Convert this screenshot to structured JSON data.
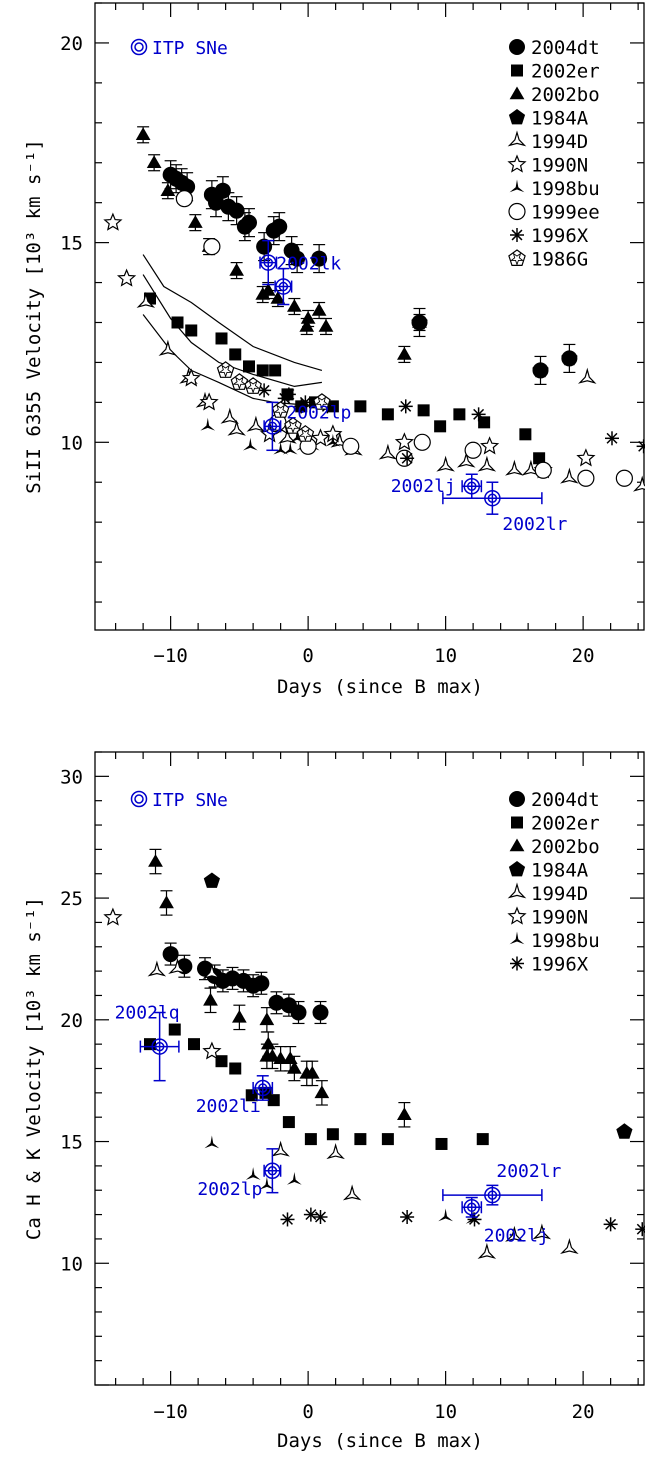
{
  "colors": {
    "ink": "#000000",
    "itp": "#0000cc"
  },
  "chart_data": [
    {
      "type": "scatter",
      "xlabel": "Days (since B max)",
      "ylabel": "SiII 6355 Velocity [10³ km s⁻¹]",
      "xlim": [
        -15.5,
        24.5
      ],
      "ylim": [
        5.3,
        21.0
      ],
      "xticks": [
        -10,
        0,
        10,
        20
      ],
      "yticks": [
        10,
        15,
        20
      ],
      "xtick_labels": [
        "−10",
        "0",
        "10",
        "20"
      ],
      "ytick_labels": [
        "10",
        "15",
        "20"
      ],
      "legend_position": "top-right",
      "itp_label": "ITP SNe",
      "series": [
        {
          "name": "2004dt",
          "marker": "circle-filled",
          "points": [
            [
              -10.0,
              16.7
            ],
            [
              -9.6,
              16.6
            ],
            [
              -9.2,
              16.5
            ],
            [
              -8.8,
              16.4
            ],
            [
              -7.0,
              16.2
            ],
            [
              -6.7,
              16.0
            ],
            [
              -6.2,
              16.3
            ],
            [
              -5.8,
              15.9
            ],
            [
              -5.2,
              15.8
            ],
            [
              -4.6,
              15.4
            ],
            [
              -4.3,
              15.5
            ],
            [
              -3.2,
              14.9
            ],
            [
              -2.5,
              15.3
            ],
            [
              -2.1,
              15.4
            ],
            [
              -1.2,
              14.8
            ],
            [
              -0.8,
              14.6
            ],
            [
              0.8,
              14.6
            ],
            [
              8.1,
              13.0
            ],
            [
              16.9,
              11.8
            ],
            [
              19.0,
              12.1
            ]
          ],
          "err": 0.35
        },
        {
          "name": "2002er",
          "marker": "square-filled",
          "points": [
            [
              -11.5,
              13.6
            ],
            [
              -9.5,
              13.0
            ],
            [
              -8.5,
              12.8
            ],
            [
              -6.3,
              12.6
            ],
            [
              -5.3,
              12.2
            ],
            [
              -4.3,
              11.9
            ],
            [
              -3.3,
              11.8
            ],
            [
              -2.4,
              11.8
            ],
            [
              -1.5,
              11.2
            ],
            [
              -0.5,
              10.9
            ],
            [
              0.5,
              11.0
            ],
            [
              1.8,
              10.9
            ],
            [
              3.8,
              10.9
            ],
            [
              5.8,
              10.7
            ],
            [
              8.4,
              10.8
            ],
            [
              9.6,
              10.4
            ],
            [
              11.0,
              10.7
            ],
            [
              12.8,
              10.5
            ],
            [
              15.8,
              10.2
            ],
            [
              16.8,
              9.6
            ]
          ]
        },
        {
          "name": "2002bo",
          "marker": "triangle-filled",
          "points": [
            [
              -12.0,
              17.7
            ],
            [
              -11.2,
              17.0
            ],
            [
              -10.2,
              16.3
            ],
            [
              -8.2,
              15.5
            ],
            [
              -7.2,
              14.9
            ],
            [
              -5.2,
              14.3
            ],
            [
              -3.3,
              13.7
            ],
            [
              -2.9,
              13.8
            ],
            [
              -2.2,
              13.6
            ],
            [
              -1.0,
              13.4
            ],
            [
              -0.1,
              12.9
            ],
            [
              0.0,
              13.1
            ],
            [
              0.8,
              13.3
            ],
            [
              1.3,
              12.9
            ],
            [
              7.0,
              12.2
            ],
            [
              8.1,
              13.0
            ]
          ],
          "err": 0.2
        },
        {
          "name": "1984A",
          "marker": "pentagon-filled",
          "points": [
            [
              8.1,
              13.0
            ],
            [
              16.9,
              11.8
            ],
            [
              19.0,
              12.1
            ]
          ]
        },
        {
          "name": "1994D",
          "marker": "triangle-open",
          "points": [
            [
              -11.8,
              13.5
            ],
            [
              -10.2,
              12.3
            ],
            [
              -8.7,
              11.6
            ],
            [
              -7.5,
              11.0
            ],
            [
              -5.7,
              10.6
            ],
            [
              -5.2,
              10.3
            ],
            [
              -3.8,
              10.4
            ],
            [
              -1.5,
              10.1
            ],
            [
              2.3,
              10.0
            ],
            [
              3.3,
              9.8
            ],
            [
              5.8,
              9.7
            ],
            [
              10.0,
              9.4
            ],
            [
              11.5,
              9.5
            ],
            [
              13.0,
              9.4
            ],
            [
              15.0,
              9.3
            ],
            [
              16.2,
              9.3
            ],
            [
              19.0,
              9.1
            ],
            [
              20.3,
              11.6
            ],
            [
              24.3,
              8.9
            ]
          ]
        },
        {
          "name": "1990N",
          "marker": "star5-open",
          "points": [
            [
              -14.2,
              15.5
            ],
            [
              -13.2,
              14.1
            ],
            [
              -8.5,
              11.6
            ],
            [
              -7.2,
              11.0
            ],
            [
              -2.8,
              10.2
            ],
            [
              -1.9,
              10.4
            ],
            [
              0.9,
              10.1
            ],
            [
              1.8,
              10.2
            ],
            [
              7.0,
              10.0
            ],
            [
              13.2,
              9.9
            ],
            [
              17.1,
              9.3
            ],
            [
              20.2,
              9.6
            ]
          ]
        },
        {
          "name": "1998bu",
          "marker": "star3-filled",
          "points": [
            [
              -7.3,
              10.4
            ],
            [
              -4.2,
              9.9
            ],
            [
              -2.0,
              9.8
            ],
            [
              -1.3,
              9.8
            ],
            [
              -0.8,
              10.1
            ],
            [
              -0.3,
              9.9
            ],
            [
              0.3,
              9.9
            ],
            [
              1.8,
              10.0
            ]
          ]
        },
        {
          "name": "1999ee",
          "marker": "circle-open",
          "points": [
            [
              -9.0,
              16.1
            ],
            [
              -7.0,
              14.9
            ],
            [
              -2.2,
              10.5
            ],
            [
              0.0,
              9.9
            ],
            [
              3.1,
              9.9
            ],
            [
              7.0,
              9.6
            ],
            [
              8.3,
              10.0
            ],
            [
              12.0,
              9.8
            ],
            [
              17.1,
              9.3
            ],
            [
              20.2,
              9.1
            ],
            [
              23.0,
              9.1
            ]
          ]
        },
        {
          "name": "1996X",
          "marker": "asterisk",
          "points": [
            [
              -3.2,
              11.3
            ],
            [
              -1.7,
              11.1
            ],
            [
              -1.4,
              11.2
            ],
            [
              -0.5,
              10.9
            ],
            [
              -0.2,
              11.0
            ],
            [
              1.4,
              10.9
            ],
            [
              7.1,
              10.9
            ],
            [
              7.2,
              9.6
            ],
            [
              12.4,
              10.7
            ],
            [
              22.1,
              10.1
            ],
            [
              24.4,
              9.9
            ]
          ]
        },
        {
          "name": "1986G",
          "marker": "star-pentagon",
          "points": [
            [
              -6.0,
              11.8
            ],
            [
              -5.0,
              11.5
            ],
            [
              -4.0,
              11.4
            ],
            [
              -2.0,
              10.8
            ],
            [
              -1.1,
              10.4
            ],
            [
              -0.2,
              10.2
            ],
            [
              1.0,
              11.0
            ]
          ]
        }
      ],
      "model_curves": [
        [
          [
            -12.0,
            14.7
          ],
          [
            -10.5,
            13.9
          ],
          [
            -8.5,
            13.5
          ],
          [
            -6.5,
            13.0
          ],
          [
            -4.0,
            12.4
          ],
          [
            -1.0,
            12.0
          ],
          [
            1.0,
            11.8
          ]
        ],
        [
          [
            -12.0,
            14.2
          ],
          [
            -10.0,
            13.1
          ],
          [
            -8.5,
            12.5
          ],
          [
            -6.5,
            12.0
          ],
          [
            -4.0,
            11.7
          ],
          [
            -1.0,
            11.4
          ],
          [
            1.0,
            11.5
          ]
        ],
        [
          [
            -12.0,
            13.2
          ],
          [
            -10.0,
            12.3
          ],
          [
            -8.5,
            11.8
          ],
          [
            -6.5,
            11.5
          ],
          [
            -4.0,
            11.1
          ],
          [
            -2.5,
            11.0
          ],
          [
            1.0,
            10.9
          ]
        ]
      ],
      "itp_points": [
        {
          "label": "2002lk",
          "x": -2.9,
          "y": 14.5,
          "xerr": 0.6,
          "yerr": 0.55
        },
        {
          "label": "",
          "x": -1.8,
          "y": 13.9,
          "xerr": 0.6,
          "yerr": 0.45
        },
        {
          "label": "2002lp",
          "x": -2.6,
          "y": 10.4,
          "xerr": 0.6,
          "yerr": 0.6
        },
        {
          "label": "2002lj",
          "x": 11.9,
          "y": 8.9,
          "xerr": 0.7,
          "yerr": 0.3
        },
        {
          "label": "2002lr",
          "x": 13.4,
          "y": 8.6,
          "xerr": 3.6,
          "yerr": 0.4
        }
      ]
    },
    {
      "type": "scatter",
      "xlabel": "Days (since B max)",
      "ylabel": "Ca H & K Velocity [10³ km s⁻¹]",
      "xlim": [
        -15.5,
        24.5
      ],
      "ylim": [
        5.0,
        31.0
      ],
      "xticks": [
        -10,
        0,
        10,
        20
      ],
      "yticks": [
        10,
        15,
        20,
        25,
        30
      ],
      "xtick_labels": [
        "−10",
        "0",
        "10",
        "20"
      ],
      "ytick_labels": [
        "10",
        "15",
        "20",
        "25",
        "30"
      ],
      "legend_position": "top-right",
      "itp_label": "ITP SNe",
      "series": [
        {
          "name": "2004dt",
          "marker": "circle-filled",
          "points": [
            [
              -10.0,
              22.7
            ],
            [
              -9.0,
              22.2
            ],
            [
              -7.5,
              22.1
            ],
            [
              -6.8,
              21.8
            ],
            [
              -6.2,
              21.6
            ],
            [
              -5.5,
              21.7
            ],
            [
              -4.7,
              21.6
            ],
            [
              -4.0,
              21.4
            ],
            [
              -3.4,
              21.5
            ],
            [
              -2.3,
              20.7
            ],
            [
              -1.4,
              20.6
            ],
            [
              -0.7,
              20.3
            ],
            [
              0.9,
              20.3
            ]
          ],
          "err": 0.45
        },
        {
          "name": "2002er",
          "marker": "square-filled",
          "points": [
            [
              -11.5,
              19.0
            ],
            [
              -9.7,
              19.6
            ],
            [
              -8.3,
              19.0
            ],
            [
              -6.3,
              18.3
            ],
            [
              -5.3,
              18.0
            ],
            [
              -4.1,
              16.9
            ],
            [
              -3.1,
              17.0
            ],
            [
              -2.5,
              16.7
            ],
            [
              -1.4,
              15.8
            ],
            [
              0.2,
              15.1
            ],
            [
              1.8,
              15.3
            ],
            [
              3.8,
              15.1
            ],
            [
              5.8,
              15.1
            ],
            [
              9.7,
              14.9
            ],
            [
              12.7,
              15.1
            ]
          ]
        },
        {
          "name": "2002bo",
          "marker": "triangle-filled",
          "points": [
            [
              -11.1,
              26.5
            ],
            [
              -10.3,
              24.8
            ],
            [
              -7.1,
              20.8
            ],
            [
              -5.0,
              20.1
            ],
            [
              -3.0,
              18.5
            ],
            [
              -2.6,
              18.5
            ],
            [
              -2.0,
              18.4
            ],
            [
              -1.3,
              18.4
            ],
            [
              -1.0,
              18.0
            ],
            [
              -0.1,
              17.8
            ],
            [
              0.3,
              17.8
            ],
            [
              1.0,
              17.0
            ],
            [
              -3.0,
              20.0
            ],
            [
              -2.9,
              19.0
            ],
            [
              7.0,
              16.1
            ]
          ],
          "err": 0.5
        },
        {
          "name": "1984A",
          "marker": "pentagon-filled",
          "points": [
            [
              -7.0,
              25.7
            ],
            [
              23.0,
              15.4
            ]
          ]
        },
        {
          "name": "1994D",
          "marker": "triangle-open",
          "points": [
            [
              -11.0,
              22.0
            ],
            [
              -9.5,
              22.1
            ],
            [
              -7.0,
              21.9
            ],
            [
              -2.0,
              14.6
            ],
            [
              2.0,
              14.5
            ],
            [
              3.2,
              12.8
            ],
            [
              13.0,
              10.4
            ],
            [
              15.0,
              11.1
            ],
            [
              17.0,
              11.2
            ],
            [
              19.0,
              10.6
            ]
          ]
        },
        {
          "name": "1990N",
          "marker": "star5-open",
          "points": [
            [
              -14.2,
              24.2
            ],
            [
              -7.0,
              18.7
            ]
          ]
        },
        {
          "name": "1998bu",
          "marker": "star3-filled",
          "points": [
            [
              -7.0,
              14.9
            ],
            [
              -4.0,
              13.6
            ],
            [
              -3.0,
              13.2
            ],
            [
              -1.0,
              13.4
            ],
            [
              10.0,
              11.9
            ],
            [
              12.0,
              11.8
            ]
          ]
        },
        {
          "name": "1996X",
          "marker": "asterisk",
          "points": [
            [
              -1.5,
              11.8
            ],
            [
              0.2,
              12.0
            ],
            [
              0.9,
              11.9
            ],
            [
              7.2,
              11.9
            ],
            [
              12.1,
              11.8
            ],
            [
              22.0,
              11.6
            ],
            [
              24.3,
              11.4
            ]
          ]
        }
      ],
      "itp_points": [
        {
          "label": "2002lq",
          "x": -10.8,
          "y": 18.9,
          "xerr": 1.4,
          "yerr": 1.4
        },
        {
          "label": "2002li",
          "x": -3.3,
          "y": 17.2,
          "xerr": 0.7,
          "yerr": 0.5
        },
        {
          "label": "2002lp",
          "x": -2.6,
          "y": 13.8,
          "xerr": 0.6,
          "yerr": 0.9
        },
        {
          "label": "2002lr",
          "x": 13.4,
          "y": 12.8,
          "xerr": 3.6,
          "yerr": 0.4
        },
        {
          "label": "2002lj",
          "x": 11.9,
          "y": 12.3,
          "xerr": 0.7,
          "yerr": 0.4
        }
      ]
    }
  ]
}
